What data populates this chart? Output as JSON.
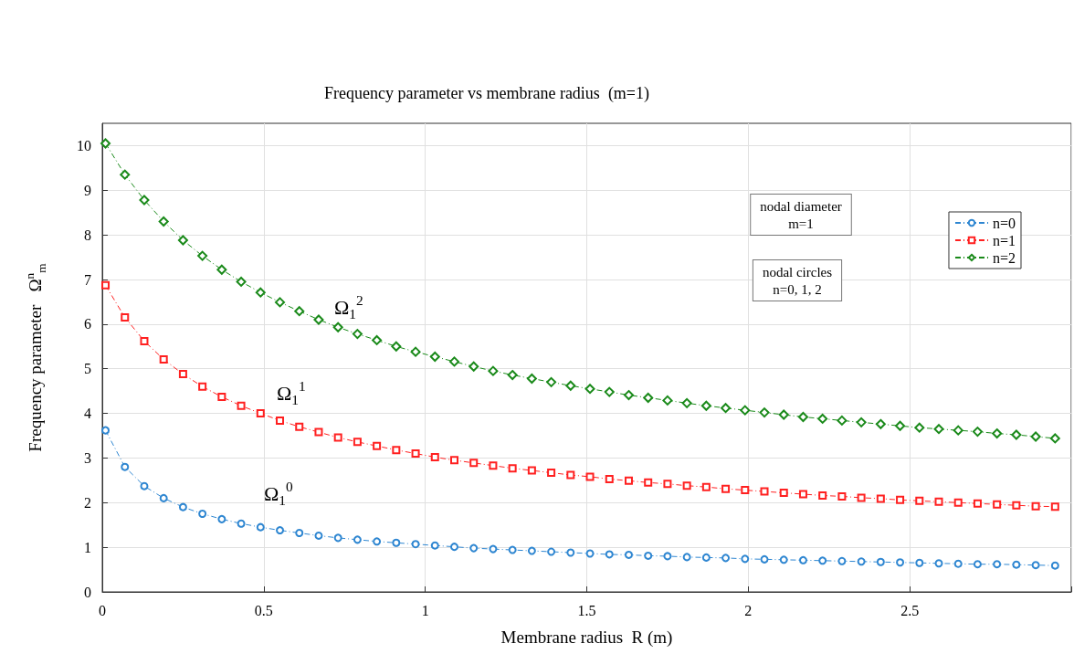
{
  "chart_data": {
    "type": "line",
    "title": "Frequency parameter vs membrane radius  (m=1)",
    "xlabel": "Membrane radius  R (m)",
    "ylabel": "Frequency parameter   Ω$^{n}$$_{m}$",
    "x": [
      0.01,
      0.07,
      0.13,
      0.19,
      0.25,
      0.31,
      0.37,
      0.43,
      0.49,
      0.55,
      0.61,
      0.67,
      0.73,
      0.79,
      0.85,
      0.91,
      0.97,
      1.03,
      1.09,
      1.15,
      1.21,
      1.27,
      1.33,
      1.39,
      1.45,
      1.51,
      1.57,
      1.63,
      1.69,
      1.75,
      1.81,
      1.87,
      1.93,
      1.99,
      2.05,
      2.11,
      2.17,
      2.23,
      2.29,
      2.35,
      2.41,
      2.47,
      2.53,
      2.59,
      2.65,
      2.71,
      2.77,
      2.83,
      2.89,
      2.95
    ],
    "series": [
      {
        "name": "n=0",
        "color": "#2e86d1",
        "marker": "circle",
        "values": [
          3.62,
          2.8,
          2.37,
          2.1,
          1.9,
          1.75,
          1.63,
          1.53,
          1.45,
          1.38,
          1.32,
          1.26,
          1.21,
          1.17,
          1.13,
          1.1,
          1.07,
          1.04,
          1.01,
          0.98,
          0.96,
          0.94,
          0.92,
          0.9,
          0.88,
          0.86,
          0.84,
          0.83,
          0.81,
          0.8,
          0.78,
          0.77,
          0.76,
          0.74,
          0.73,
          0.72,
          0.71,
          0.7,
          0.69,
          0.68,
          0.67,
          0.66,
          0.65,
          0.64,
          0.63,
          0.62,
          0.62,
          0.61,
          0.6,
          0.59
        ]
      },
      {
        "name": "n=1",
        "color": "#ff2020",
        "marker": "square",
        "values": [
          6.87,
          6.15,
          5.62,
          5.21,
          4.88,
          4.6,
          4.37,
          4.17,
          4.0,
          3.84,
          3.7,
          3.58,
          3.46,
          3.36,
          3.27,
          3.18,
          3.1,
          3.02,
          2.95,
          2.89,
          2.83,
          2.77,
          2.72,
          2.67,
          2.62,
          2.58,
          2.53,
          2.49,
          2.45,
          2.42,
          2.38,
          2.35,
          2.31,
          2.28,
          2.25,
          2.22,
          2.19,
          2.16,
          2.14,
          2.11,
          2.09,
          2.06,
          2.04,
          2.02,
          2.0,
          1.98,
          1.96,
          1.94,
          1.92,
          1.91
        ]
      },
      {
        "name": "n=2",
        "color": "#1a8a1a",
        "marker": "diamond",
        "values": [
          10.05,
          9.35,
          8.78,
          8.3,
          7.88,
          7.53,
          7.22,
          6.95,
          6.71,
          6.49,
          6.29,
          6.1,
          5.93,
          5.78,
          5.64,
          5.5,
          5.38,
          5.27,
          5.16,
          5.05,
          4.95,
          4.86,
          4.78,
          4.7,
          4.62,
          4.55,
          4.48,
          4.41,
          4.35,
          4.29,
          4.23,
          4.17,
          4.12,
          4.07,
          4.02,
          3.97,
          3.92,
          3.88,
          3.84,
          3.8,
          3.76,
          3.72,
          3.68,
          3.65,
          3.62,
          3.59,
          3.55,
          3.52,
          3.48,
          3.44
        ]
      }
    ],
    "xlim": [
      0,
      3
    ],
    "xticks": [
      0,
      0.5,
      1,
      1.5,
      2,
      2.5,
      {
        "value": 3,
        "label": null
      }
    ],
    "ylim": [
      0,
      10.5
    ],
    "yticks": [
      0,
      1,
      2,
      3,
      4,
      5,
      6,
      7,
      8,
      9,
      10
    ],
    "grid": true,
    "legend": "top right",
    "line_style": "dashed",
    "annotations": [
      "Ω$_{1}$$^{2}$",
      "Ω$_{1}$$^{1}$",
      "Ω$_{1}$$^{0}$",
      "nodal diameter\nm=1",
      "nodal circles\nn=0, 1, 2"
    ]
  }
}
